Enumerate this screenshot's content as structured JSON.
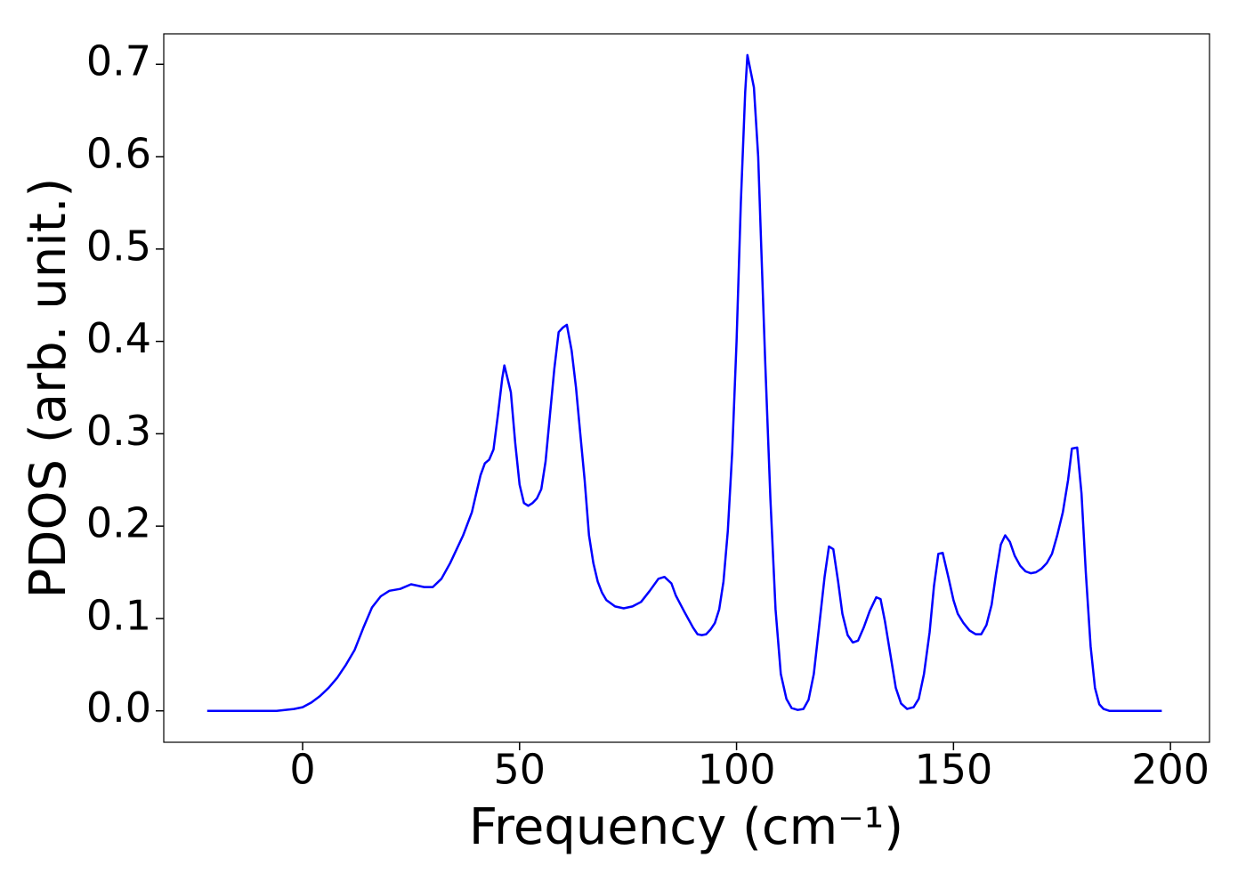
{
  "chart_data": {
    "type": "line",
    "x_label": "Frequency (cm⁻¹)",
    "y_label": "PDOS (arb. unit.)",
    "xlim": [
      -32,
      209
    ],
    "ylim": [
      -0.034,
      0.733
    ],
    "xticks": [
      0,
      50,
      100,
      150,
      200
    ],
    "yticks": [
      {
        "value": 0,
        "label": "0.0"
      },
      0.1,
      0.2,
      0.3,
      0.4,
      0.5,
      0.6,
      0.7
    ],
    "series": [
      {
        "color": "#0000ff",
        "x": [
          -22,
          -6,
          -2,
          0,
          2,
          4,
          6,
          8,
          10,
          12,
          14,
          16,
          18,
          20,
          22.5,
          25,
          28,
          30,
          32,
          34,
          37,
          39,
          40,
          41,
          42,
          43,
          44,
          45,
          46,
          46.5,
          48,
          49,
          50,
          51,
          52,
          53,
          54,
          55,
          56,
          57,
          58,
          59,
          60,
          60.9,
          62,
          63,
          64,
          65,
          66,
          67,
          68,
          69,
          70,
          72,
          74,
          76,
          78,
          80,
          82,
          83.4,
          85,
          86,
          88,
          90,
          91,
          92,
          93,
          94,
          95,
          96,
          97,
          98,
          99,
          100,
          101,
          102,
          102.5,
          104,
          105,
          105.7,
          106.6,
          107.8,
          109,
          110.2,
          111.5,
          112.7,
          114.1,
          115.4,
          116.6,
          117.8,
          119,
          120.3,
          121.3,
          122.3,
          123.4,
          124.4,
          125.6,
          126.8,
          128,
          129.3,
          130.7,
          132.2,
          133.2,
          134.2,
          135.5,
          136.7,
          137.9,
          139.3,
          140.8,
          142,
          143.2,
          144.5,
          145.5,
          146.5,
          147.5,
          148.8,
          150,
          151,
          152.3,
          153.7,
          155.1,
          156.4,
          157.6,
          158.8,
          159.8,
          160.9,
          161.9,
          163,
          164.1,
          165.4,
          166.6,
          167.8,
          169,
          170.3,
          171.5,
          172.7,
          173.9,
          175.2,
          176.4,
          177.3,
          178.5,
          179.5,
          180.5,
          181.6,
          182.6,
          183.6,
          184.6,
          185.9,
          198
        ],
        "values": [
          0,
          0,
          0.002,
          0.004,
          0.009,
          0.016,
          0.025,
          0.036,
          0.05,
          0.066,
          0.09,
          0.112,
          0.124,
          0.13,
          0.132,
          0.137,
          0.134,
          0.134,
          0.143,
          0.16,
          0.19,
          0.215,
          0.235,
          0.255,
          0.268,
          0.272,
          0.283,
          0.32,
          0.36,
          0.374,
          0.345,
          0.29,
          0.245,
          0.225,
          0.222,
          0.225,
          0.23,
          0.24,
          0.27,
          0.32,
          0.37,
          0.41,
          0.415,
          0.418,
          0.39,
          0.35,
          0.3,
          0.25,
          0.19,
          0.16,
          0.14,
          0.128,
          0.12,
          0.113,
          0.111,
          0.113,
          0.118,
          0.13,
          0.143,
          0.145,
          0.138,
          0.125,
          0.107,
          0.09,
          0.083,
          0.082,
          0.083,
          0.088,
          0.095,
          0.11,
          0.14,
          0.195,
          0.28,
          0.4,
          0.55,
          0.67,
          0.71,
          0.675,
          0.6,
          0.5,
          0.38,
          0.23,
          0.11,
          0.04,
          0.013,
          0.003,
          0.001,
          0.002,
          0.012,
          0.04,
          0.09,
          0.145,
          0.178,
          0.175,
          0.14,
          0.105,
          0.082,
          0.074,
          0.076,
          0.09,
          0.108,
          0.123,
          0.121,
          0.097,
          0.06,
          0.025,
          0.008,
          0.002,
          0.004,
          0.013,
          0.04,
          0.085,
          0.135,
          0.17,
          0.171,
          0.145,
          0.12,
          0.105,
          0.095,
          0.087,
          0.083,
          0.083,
          0.093,
          0.115,
          0.148,
          0.18,
          0.19,
          0.183,
          0.168,
          0.157,
          0.151,
          0.149,
          0.15,
          0.154,
          0.16,
          0.17,
          0.19,
          0.215,
          0.25,
          0.284,
          0.285,
          0.235,
          0.15,
          0.07,
          0.025,
          0.007,
          0.002,
          0,
          0
        ]
      }
    ]
  }
}
